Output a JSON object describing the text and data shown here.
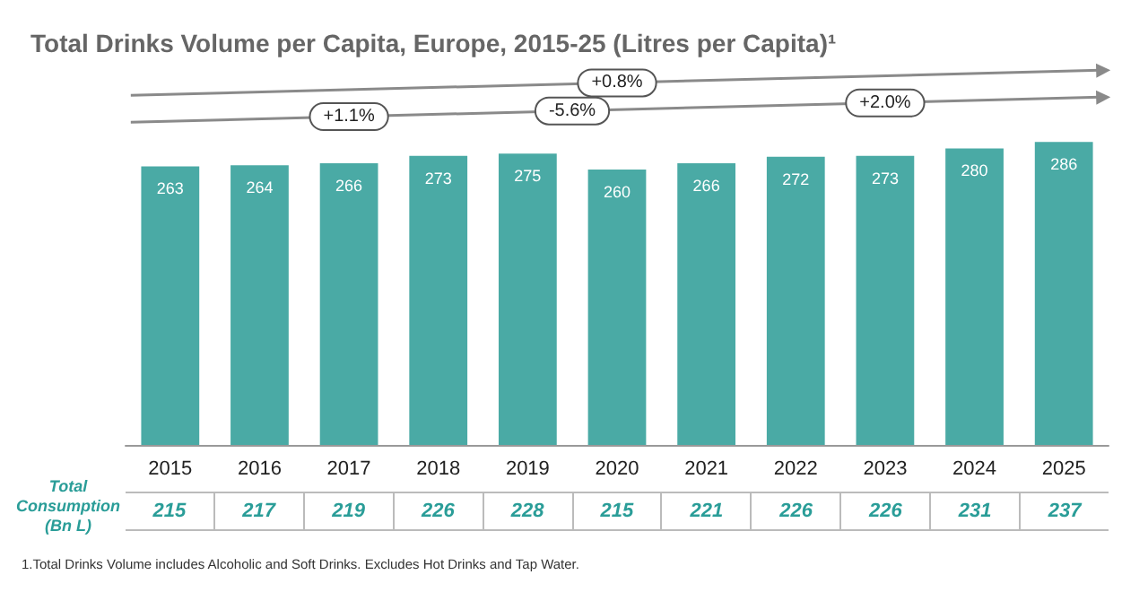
{
  "chart_data": [
    {
      "type": "bar",
      "title": "Total Drinks Volume per Capita, Europe, 2015-25 (Litres per Capita)¹",
      "categories": [
        "2015",
        "2016",
        "2017",
        "2018",
        "2019",
        "2020",
        "2021",
        "2022",
        "2023",
        "2024",
        "2025"
      ],
      "values": [
        263,
        264,
        266,
        273,
        275,
        260,
        266,
        272,
        273,
        280,
        286
      ],
      "color": "#4aaaa5",
      "data_labels": true,
      "tick_labels": "x",
      "annotations": [
        "+0.8%",
        "+1.1%",
        "-5.6%",
        "+2.0%"
      ]
    },
    {
      "type": "other",
      "title": "Total Consumption (Bn L)",
      "values": [
        215,
        217,
        219,
        226,
        228,
        215,
        221,
        226,
        226,
        231,
        237
      ],
      "color": "#2a9d98",
      "data_labels": true,
      "annotations": [
        "1.Total Drinks Volume includes Alcoholic and Soft Drinks. Excludes Hot Drinks and Tap Water."
      ]
    }
  ]
}
